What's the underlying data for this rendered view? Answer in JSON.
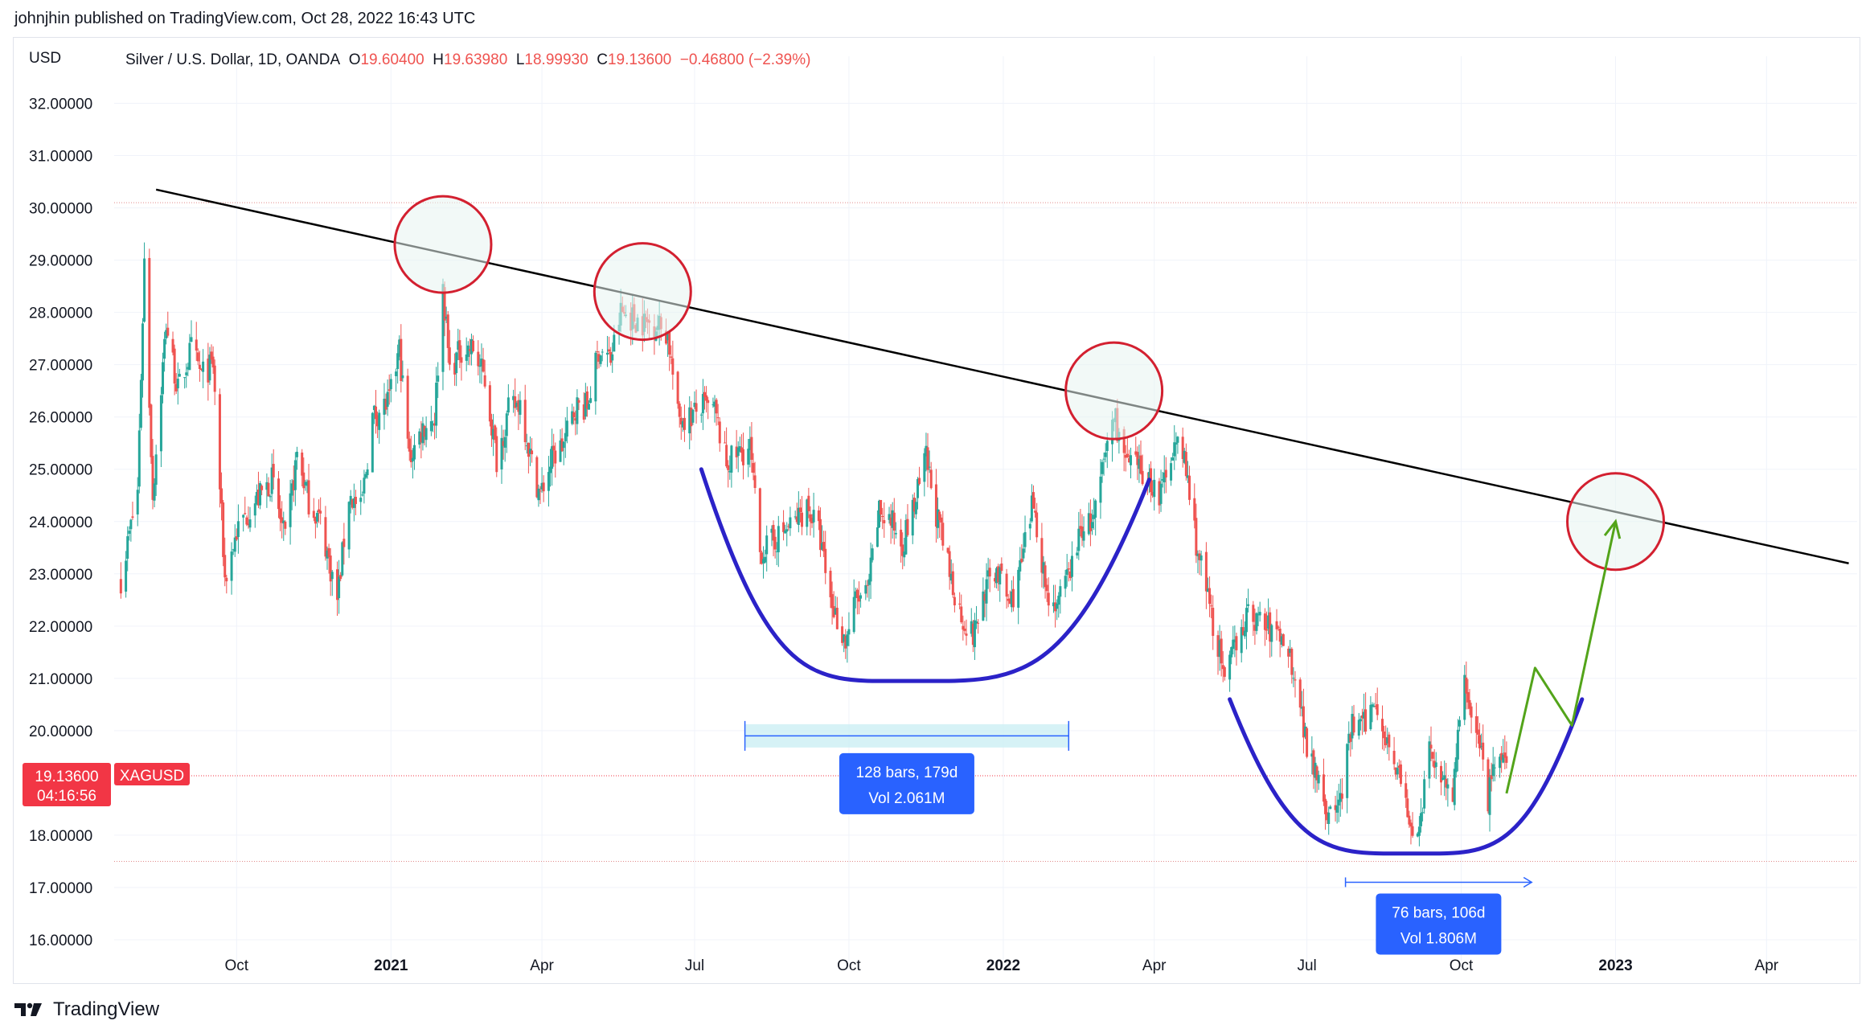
{
  "header": {
    "text": "johnjhin published on TradingView.com, Oct 28, 2022 16:43 UTC"
  },
  "footer": {
    "brand": "TradingView"
  },
  "chart_data": {
    "type": "candlestick",
    "currency_label": "USD",
    "legend": {
      "name": "Silver / U.S. Dollar, 1D, OANDA",
      "open_label": "O",
      "open": "19.60400",
      "high_label": "H",
      "high": "19.63980",
      "low_label": "L",
      "low": "18.99930",
      "close_label": "C",
      "close": "19.13600",
      "change": "−0.46800 (−2.39%)"
    },
    "y_ticks": [
      "32.00000",
      "31.00000",
      "30.00000",
      "29.00000",
      "28.00000",
      "27.00000",
      "26.00000",
      "25.00000",
      "24.00000",
      "23.00000",
      "22.00000",
      "21.00000",
      "20.00000",
      "18.00000",
      "17.00000",
      "16.00000"
    ],
    "ylim": [
      15.6,
      32.9
    ],
    "x_ticks": [
      {
        "label": "Oct",
        "date": "2020-10-01",
        "bold": false
      },
      {
        "label": "2021",
        "date": "2021-01-01",
        "bold": true
      },
      {
        "label": "Apr",
        "date": "2021-04-01",
        "bold": false
      },
      {
        "label": "Jul",
        "date": "2021-07-01",
        "bold": false
      },
      {
        "label": "Oct",
        "date": "2021-10-01",
        "bold": false
      },
      {
        "label": "2022",
        "date": "2022-01-01",
        "bold": true
      },
      {
        "label": "Apr",
        "date": "2022-04-01",
        "bold": false
      },
      {
        "label": "Jul",
        "date": "2022-07-01",
        "bold": false
      },
      {
        "label": "Oct",
        "date": "2022-10-01",
        "bold": false
      },
      {
        "label": "2023",
        "date": "2023-01-01",
        "bold": true
      },
      {
        "label": "Apr",
        "date": "2023-04-01",
        "bold": false
      }
    ],
    "price_tag": {
      "value": "19.13600",
      "countdown": "04:16:56",
      "symbol": "XAGUSD",
      "price": 19.136
    },
    "price_path": [
      [
        "2020-07-24",
        22.9
      ],
      [
        "2020-08-03",
        24.6
      ],
      [
        "2020-08-07",
        29.0
      ],
      [
        "2020-08-12",
        24.5
      ],
      [
        "2020-08-20",
        27.8
      ],
      [
        "2020-08-27",
        26.5
      ],
      [
        "2020-09-04",
        27.3
      ],
      [
        "2020-09-10",
        26.8
      ],
      [
        "2020-09-17",
        27.0
      ],
      [
        "2020-09-24",
        22.9
      ],
      [
        "2020-10-01",
        23.8
      ],
      [
        "2020-10-08",
        24.2
      ],
      [
        "2020-10-15",
        24.5
      ],
      [
        "2020-10-22",
        24.8
      ],
      [
        "2020-10-30",
        23.6
      ],
      [
        "2020-11-06",
        25.3
      ],
      [
        "2020-11-13",
        24.4
      ],
      [
        "2020-11-20",
        24.0
      ],
      [
        "2020-11-30",
        22.5
      ],
      [
        "2020-12-07",
        24.5
      ],
      [
        "2020-12-14",
        24.2
      ],
      [
        "2020-12-21",
        26.0
      ],
      [
        "2020-12-31",
        26.3
      ],
      [
        "2021-01-06",
        27.3
      ],
      [
        "2021-01-12",
        25.2
      ],
      [
        "2021-01-20",
        25.8
      ],
      [
        "2021-01-27",
        26.0
      ],
      [
        "2021-02-01",
        28.5
      ],
      [
        "2021-02-05",
        26.9
      ],
      [
        "2021-02-12",
        27.3
      ],
      [
        "2021-02-19",
        27.3
      ],
      [
        "2021-02-26",
        26.7
      ],
      [
        "2021-03-05",
        25.2
      ],
      [
        "2021-03-12",
        26.1
      ],
      [
        "2021-03-19",
        26.3
      ],
      [
        "2021-03-26",
        25.1
      ],
      [
        "2021-03-31",
        24.5
      ],
      [
        "2021-04-07",
        25.2
      ],
      [
        "2021-04-14",
        25.5
      ],
      [
        "2021-04-21",
        26.2
      ],
      [
        "2021-04-28",
        26.2
      ],
      [
        "2021-05-05",
        27.3
      ],
      [
        "2021-05-12",
        27.1
      ],
      [
        "2021-05-18",
        28.0
      ],
      [
        "2021-05-25",
        27.9
      ],
      [
        "2021-06-01",
        27.8
      ],
      [
        "2021-06-08",
        27.8
      ],
      [
        "2021-06-15",
        27.6
      ],
      [
        "2021-06-21",
        26.0
      ],
      [
        "2021-06-28",
        26.0
      ],
      [
        "2021-07-06",
        26.2
      ],
      [
        "2021-07-13",
        26.1
      ],
      [
        "2021-07-20",
        25.1
      ],
      [
        "2021-07-27",
        25.3
      ],
      [
        "2021-08-03",
        25.4
      ],
      [
        "2021-08-09",
        23.4
      ],
      [
        "2021-08-16",
        23.6
      ],
      [
        "2021-08-23",
        23.8
      ],
      [
        "2021-08-30",
        24.0
      ],
      [
        "2021-09-06",
        24.3
      ],
      [
        "2021-09-13",
        23.8
      ],
      [
        "2021-09-20",
        22.5
      ],
      [
        "2021-09-29",
        21.7
      ],
      [
        "2021-10-05",
        22.5
      ],
      [
        "2021-10-12",
        22.6
      ],
      [
        "2021-10-19",
        24.2
      ],
      [
        "2021-10-26",
        24.0
      ],
      [
        "2021-11-02",
        23.6
      ],
      [
        "2021-11-09",
        24.3
      ],
      [
        "2021-11-16",
        25.2
      ],
      [
        "2021-11-23",
        24.0
      ],
      [
        "2021-11-30",
        23.0
      ],
      [
        "2021-12-07",
        22.2
      ],
      [
        "2021-12-14",
        21.8
      ],
      [
        "2021-12-21",
        22.7
      ],
      [
        "2021-12-28",
        23.1
      ],
      [
        "2022-01-05",
        22.4
      ],
      [
        "2022-01-12",
        23.2
      ],
      [
        "2022-01-19",
        24.4
      ],
      [
        "2022-01-27",
        22.6
      ],
      [
        "2022-02-03",
        22.4
      ],
      [
        "2022-02-10",
        23.1
      ],
      [
        "2022-02-17",
        23.9
      ],
      [
        "2022-02-24",
        24.0
      ],
      [
        "2022-03-03",
        25.3
      ],
      [
        "2022-03-08",
        26.1
      ],
      [
        "2022-03-15",
        25.1
      ],
      [
        "2022-03-22",
        25.0
      ],
      [
        "2022-03-29",
        24.8
      ],
      [
        "2022-04-05",
        24.5
      ],
      [
        "2022-04-12",
        25.5
      ],
      [
        "2022-04-19",
        25.2
      ],
      [
        "2022-04-26",
        23.6
      ],
      [
        "2022-05-03",
        22.5
      ],
      [
        "2022-05-10",
        21.5
      ],
      [
        "2022-05-13",
        20.8
      ],
      [
        "2022-05-20",
        21.8
      ],
      [
        "2022-05-27",
        22.2
      ],
      [
        "2022-06-03",
        22.1
      ],
      [
        "2022-06-10",
        21.9
      ],
      [
        "2022-06-17",
        21.8
      ],
      [
        "2022-06-24",
        21.1
      ],
      [
        "2022-07-01",
        19.7
      ],
      [
        "2022-07-08",
        19.2
      ],
      [
        "2022-07-14",
        18.3
      ],
      [
        "2022-07-21",
        18.7
      ],
      [
        "2022-07-28",
        20.1
      ],
      [
        "2022-08-04",
        20.1
      ],
      [
        "2022-08-11",
        20.6
      ],
      [
        "2022-08-18",
        19.8
      ],
      [
        "2022-08-25",
        19.2
      ],
      [
        "2022-09-01",
        18.0
      ],
      [
        "2022-09-07",
        18.3
      ],
      [
        "2022-09-12",
        19.6
      ],
      [
        "2022-09-19",
        19.2
      ],
      [
        "2022-09-26",
        18.8
      ],
      [
        "2022-10-03",
        21.0
      ],
      [
        "2022-10-10",
        20.0
      ],
      [
        "2022-10-17",
        18.7
      ],
      [
        "2022-10-21",
        19.3
      ],
      [
        "2022-10-25",
        19.6
      ],
      [
        "2022-10-28",
        19.136
      ]
    ],
    "annotations": {
      "trendline": {
        "from": [
          "2020-08-14",
          30.35
        ],
        "to": [
          "2023-05-20",
          23.2
        ]
      },
      "horizontal_levels": [
        30.1,
        17.5
      ],
      "circles": [
        {
          "center": [
            "2021-02-01",
            29.3
          ]
        },
        {
          "center": [
            "2021-05-31",
            28.4
          ]
        },
        {
          "center": [
            "2022-03-08",
            26.5
          ]
        },
        {
          "center": [
            "2023-01-01",
            24.0
          ]
        }
      ],
      "arcs": [
        {
          "from": [
            "2021-07-05",
            25.0
          ],
          "bottom": [
            "2021-11-05",
            20.95
          ],
          "to": [
            "2022-03-29",
            24.8
          ]
        },
        {
          "from": [
            "2022-05-16",
            20.6
          ],
          "bottom": [
            "2022-09-02",
            17.65
          ],
          "to": [
            "2022-12-12",
            20.6
          ]
        }
      ],
      "projection": [
        [
          "2022-10-28",
          18.8
        ],
        [
          "2022-11-14",
          21.2
        ],
        [
          "2022-12-06",
          20.1
        ],
        [
          "2023-01-01",
          24.0
        ]
      ],
      "measures": [
        {
          "from": [
            "2021-07-31",
            20.0
          ],
          "to": [
            "2022-02-09",
            19.8
          ],
          "label1": "128 bars, 179d",
          "label2": "Vol 2.061M"
        },
        {
          "from": [
            "2022-07-24",
            17.1
          ],
          "to": [
            "2022-11-12",
            17.1
          ],
          "label1": "76 bars, 106d",
          "label2": "Vol 1.806M"
        }
      ]
    },
    "colors": {
      "up": "#26a69a",
      "down": "#ef5350",
      "trendline": "#000000",
      "circle": "#d32030",
      "circle_fill": "#e8f4f1",
      "arc": "#2b22c8",
      "projection": "#53a41a",
      "measure": "#2962ff",
      "measure_fill": "#cceff4",
      "tag": "#f23645",
      "grid": "#f0f3fa"
    }
  }
}
